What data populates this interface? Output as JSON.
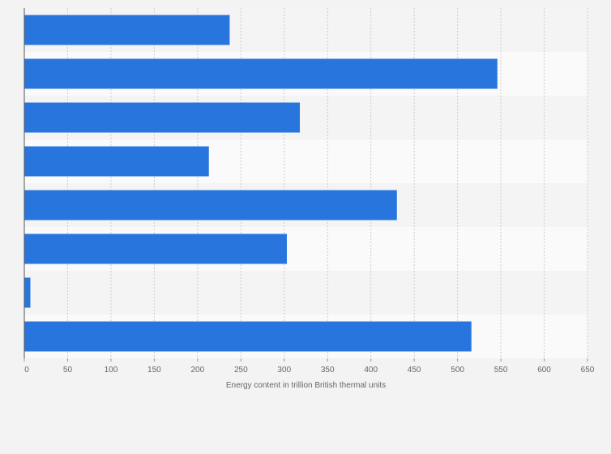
{
  "chart_data": {
    "type": "bar",
    "orientation": "horizontal",
    "categories": [
      "",
      "",
      "",
      "",
      "",
      "",
      "",
      ""
    ],
    "values": [
      237,
      546,
      318,
      213,
      430,
      303,
      7,
      516
    ],
    "xlabel": "Energy content in trillion British thermal units",
    "ylabel": "",
    "xlim": [
      0,
      650
    ],
    "xticks": [
      0,
      50,
      100,
      150,
      200,
      250,
      300,
      350,
      400,
      450,
      500,
      550,
      600,
      650
    ],
    "grid": true,
    "legend": "none",
    "bar_color": "#2876dd",
    "band_colors": [
      "#f4f4f4",
      "#fafafa"
    ],
    "background_color": "#f3f3f3",
    "axis_color": "#555555",
    "gridline_color": "#cccccc"
  }
}
